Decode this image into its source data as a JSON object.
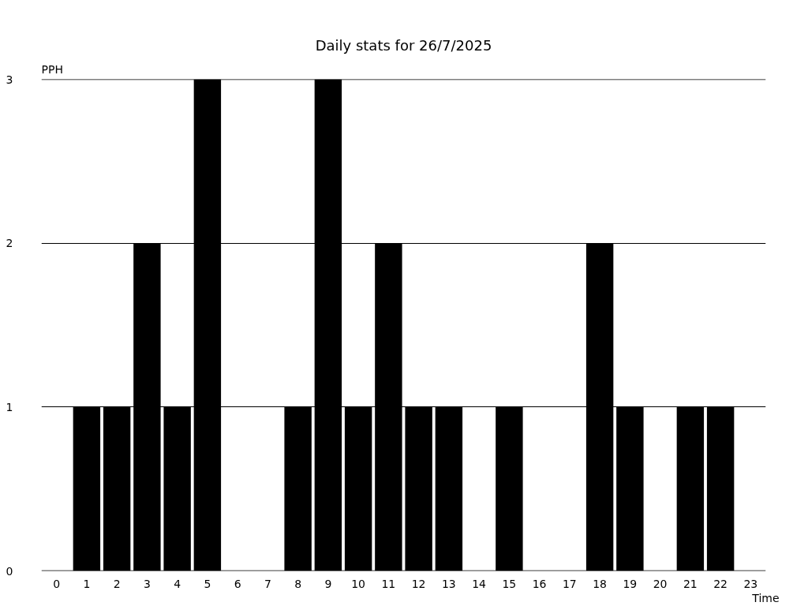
{
  "chart_data": {
    "type": "bar",
    "title": "Daily stats for 26/7/2025",
    "xlabel": "Time",
    "ylabel": "PPH",
    "categories": [
      "0",
      "1",
      "2",
      "3",
      "4",
      "5",
      "6",
      "7",
      "8",
      "9",
      "10",
      "11",
      "12",
      "13",
      "14",
      "15",
      "16",
      "17",
      "18",
      "19",
      "20",
      "21",
      "22",
      "23"
    ],
    "values": [
      0,
      1,
      1,
      2,
      1,
      3,
      0,
      0,
      1,
      3,
      1,
      2,
      1,
      1,
      0,
      1,
      0,
      0,
      2,
      1,
      0,
      1,
      1,
      0
    ],
    "color": "#000000",
    "ylim": [
      0,
      3
    ],
    "yticks": [
      0,
      1,
      2,
      3
    ],
    "grid": "y"
  }
}
